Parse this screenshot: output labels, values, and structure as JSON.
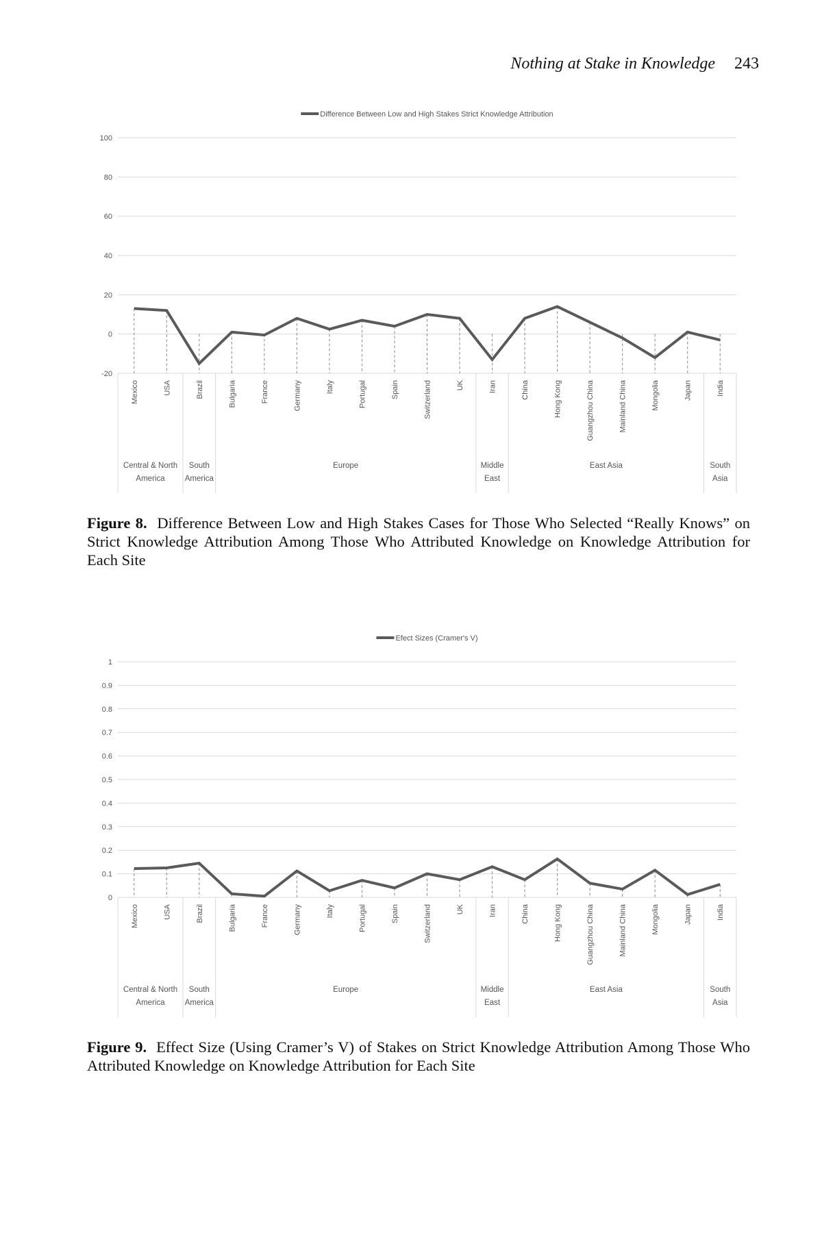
{
  "header": {
    "title": "Nothing at Stake in Knowledge",
    "page_number": "243"
  },
  "colors": {
    "line": "#5a5a5a",
    "grid": "#d9d9d9",
    "axis_text": "#555555"
  },
  "figures": [
    {
      "label": "Figure 8.",
      "caption": "Difference Between Low and High Stakes Cases for Those Who Selected “Really Knows” on Strict Knowledge Attribution Among Those Who Attributed Knowledge on Knowledge Attribution for Each Site"
    },
    {
      "label": "Figure 9.",
      "caption": "Effect Size (Using Cramer’s V) of Stakes on Strict Knowledge Attribution Among Those Who Attributed Knowledge on Knowledge Attribution for Each Site"
    }
  ],
  "chart_data": [
    {
      "type": "line",
      "legend": "Difference Between Low and High Stakes Strict Knowledge Attribution",
      "legend_position": "top-center",
      "grid": true,
      "ylim": [
        -20,
        100
      ],
      "yticks": [
        "100",
        "80",
        "60",
        "40",
        "20",
        "0",
        "-20"
      ],
      "categories": [
        "Mexico",
        "USA",
        "Brazil",
        "Bulgaria",
        "France",
        "Germany",
        "Italy",
        "Portugal",
        "Spain",
        "Switzerland",
        "UK",
        "Iran",
        "China",
        "Hong Kong",
        "Guangzhou China",
        "Mainland China",
        "Mongolia",
        "Japan",
        "India"
      ],
      "groups": [
        {
          "lines": [
            "Central & North",
            "America"
          ],
          "span": [
            0,
            1
          ]
        },
        {
          "lines": [
            "South",
            "America"
          ],
          "span": [
            2,
            2
          ]
        },
        {
          "lines": [
            "Europe"
          ],
          "span": [
            3,
            10
          ]
        },
        {
          "lines": [
            "Middle",
            "East"
          ],
          "span": [
            11,
            11
          ]
        },
        {
          "lines": [
            "East Asia"
          ],
          "span": [
            12,
            17
          ]
        },
        {
          "lines": [
            "South",
            "Asia"
          ],
          "span": [
            18,
            18
          ]
        }
      ],
      "series": [
        {
          "name": "Difference Between Low and High Stakes Strict Knowledge Attribution",
          "values": [
            13,
            12,
            -15,
            1,
            -0.5,
            8,
            2.5,
            7,
            4,
            10,
            8,
            -13,
            8,
            14,
            6,
            -2,
            -12,
            1,
            -3
          ]
        }
      ]
    },
    {
      "type": "line",
      "legend": "Efect Sizes (Cramer's V)",
      "legend_position": "top-center",
      "grid": true,
      "ylim": [
        0,
        1
      ],
      "yticks": [
        "1",
        "0.9",
        "0.8",
        "0.7",
        "0.6",
        "0.5",
        "0.4",
        "0.3",
        "0.2",
        "0.1",
        "0"
      ],
      "categories": [
        "Mexico",
        "USA",
        "Brazil",
        "Bulgaria",
        "France",
        "Germany",
        "Italy",
        "Portugal",
        "Spain",
        "Switzerland",
        "UK",
        "Iran",
        "China",
        "Hong Kong",
        "Guangzhou China",
        "Mainland China",
        "Mongolia",
        "Japan",
        "India"
      ],
      "groups": [
        {
          "lines": [
            "Central & North",
            "America"
          ],
          "span": [
            0,
            1
          ]
        },
        {
          "lines": [
            "South",
            "America"
          ],
          "span": [
            2,
            2
          ]
        },
        {
          "lines": [
            "Europe"
          ],
          "span": [
            3,
            10
          ]
        },
        {
          "lines": [
            "Middle",
            "East"
          ],
          "span": [
            11,
            11
          ]
        },
        {
          "lines": [
            "East Asia"
          ],
          "span": [
            12,
            17
          ]
        },
        {
          "lines": [
            "South",
            "Asia"
          ],
          "span": [
            18,
            18
          ]
        }
      ],
      "series": [
        {
          "name": "Efect Sizes (Cramer's V)",
          "values": [
            0.122,
            0.125,
            0.145,
            0.015,
            0.005,
            0.112,
            0.028,
            0.072,
            0.04,
            0.1,
            0.075,
            0.13,
            0.075,
            0.163,
            0.06,
            0.035,
            0.115,
            0.012,
            0.055
          ]
        }
      ]
    }
  ]
}
